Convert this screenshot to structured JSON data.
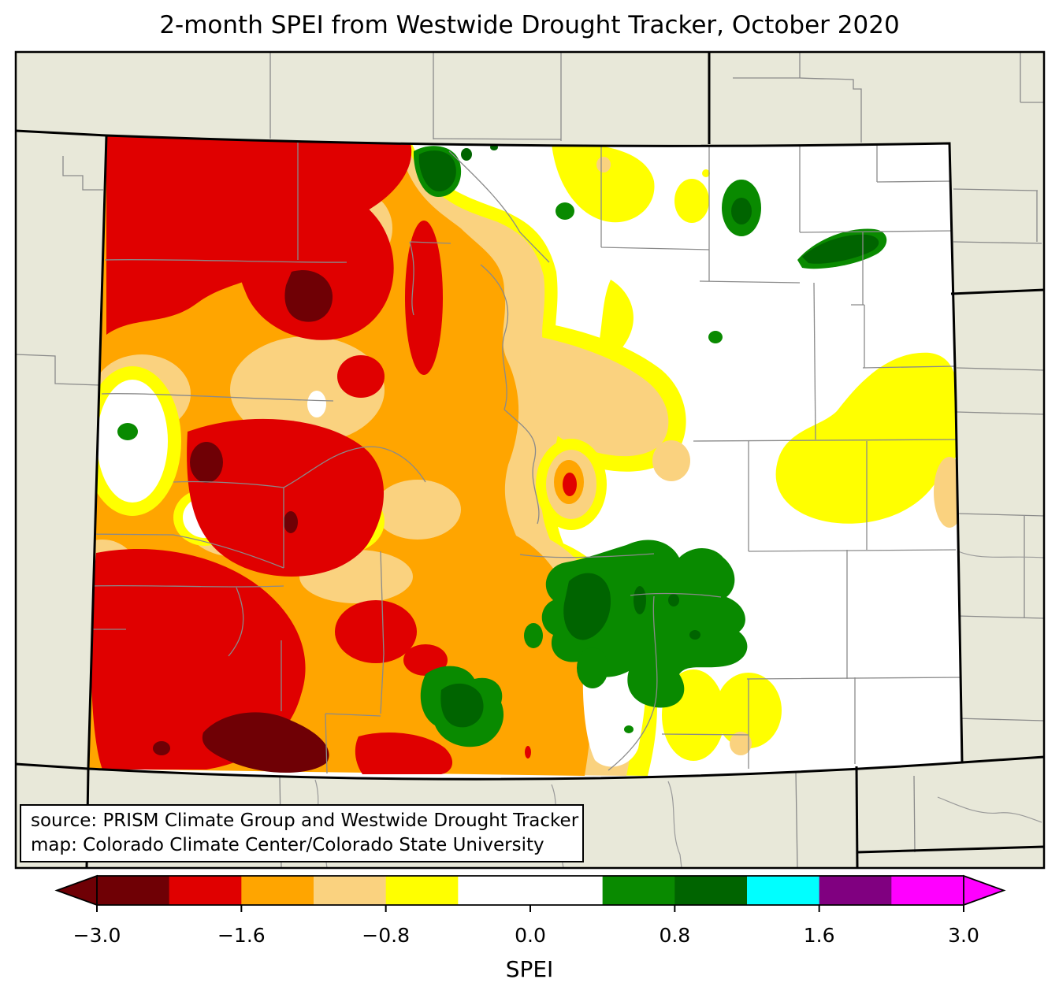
{
  "title": "2-month SPEI from Westwide Drought Tracker, October 2020",
  "source_box": {
    "line1": "source: PRISM Climate Group and Westwide Drought Tracker",
    "line2": "map: Colorado Climate Center/Colorado State University"
  },
  "colorbar": {
    "label": "SPEI",
    "tick_labels": [
      "−3.0",
      "−1.6",
      "−0.8",
      "0.0",
      "0.8",
      "1.6",
      "3.0"
    ],
    "tick_values": [
      -3.0,
      -1.6,
      -0.8,
      0.0,
      0.8,
      1.6,
      3.0
    ],
    "tick_boundary_indices": [
      0,
      2,
      4,
      6,
      8,
      10,
      12
    ],
    "boundaries": [
      -3.0,
      -2.0,
      -1.6,
      -1.3,
      -0.8,
      -0.5,
      0.0,
      0.5,
      0.8,
      1.3,
      1.6,
      2.0,
      3.0
    ],
    "colors": [
      "#6f0005",
      "#e00000",
      "#ffa500",
      "#fad27f",
      "#ffff00",
      "#ffffff",
      "#ffffff",
      "#098a00",
      "#006400",
      "#00ffff",
      "#800080",
      "#ff00ff"
    ],
    "extend_low_color": "#6f0005",
    "extend_high_color": "#ff00ff"
  },
  "map": {
    "region": "Colorado",
    "background_color": "#e8e8d9",
    "state_border_color": "#000000",
    "county_line_color": "#8a8a8a",
    "spei_scale": {
      "severe_deficit": "#6f0005",
      "deficit": "#e00000",
      "moderate_deficit": "#ffa500",
      "mild_deficit": "#fad27f",
      "slight_deficit": "#ffff00",
      "near_normal": "#ffffff",
      "surplus": "#098a00",
      "strong_surplus": "#006400"
    }
  }
}
